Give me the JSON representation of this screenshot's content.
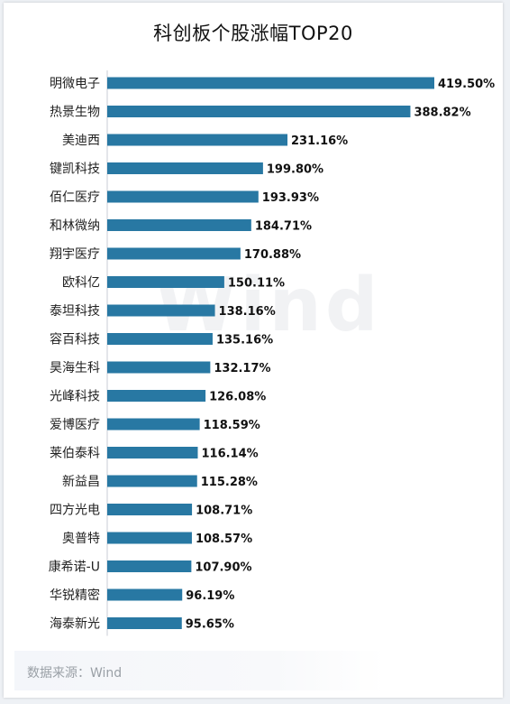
{
  "chart_data": {
    "type": "bar",
    "orientation": "horizontal",
    "title": "科创板个股涨幅TOP20",
    "categories": [
      "明微电子",
      "热景生物",
      "美迪西",
      "键凯科技",
      "佰仁医疗",
      "和林微纳",
      "翔宇医疗",
      "欧科亿",
      "泰坦科技",
      "容百科技",
      "昊海生科",
      "光峰科技",
      "爱博医疗",
      "莱伯泰科",
      "新益昌",
      "四方光电",
      "奥普特",
      "康希诺-U",
      "华锐精密",
      "海泰新光"
    ],
    "values": [
      419.5,
      388.82,
      231.16,
      199.8,
      193.93,
      184.71,
      170.88,
      150.11,
      138.16,
      135.16,
      132.17,
      126.08,
      118.59,
      116.14,
      115.28,
      108.71,
      108.57,
      107.9,
      96.19,
      95.65
    ],
    "value_labels": [
      "419.50%",
      "388.82%",
      "231.16%",
      "199.80%",
      "193.93%",
      "184.71%",
      "170.88%",
      "150.11%",
      "138.16%",
      "135.16%",
      "132.17%",
      "126.08%",
      "118.59%",
      "116.14%",
      "115.28%",
      "108.71%",
      "108.57%",
      "107.90%",
      "96.19%",
      "95.65%"
    ],
    "xlim": [
      0,
      419.5
    ],
    "bar_color": "#2878a3",
    "grid": false,
    "legend": "none"
  },
  "watermark": "Wind",
  "source": "数据来源：Wind"
}
